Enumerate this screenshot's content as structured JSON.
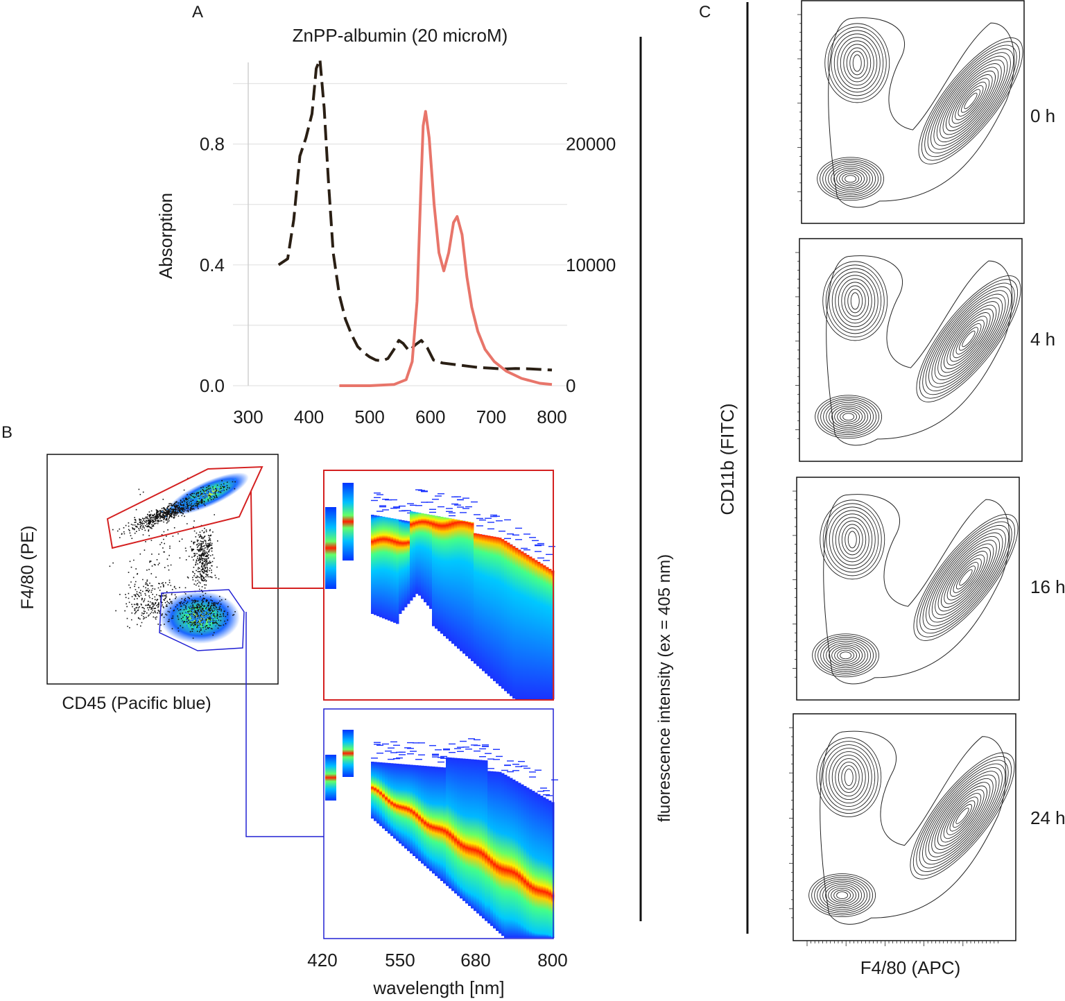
{
  "panel_labels": {
    "a": "A",
    "b": "B",
    "c": "C"
  },
  "panel_a": {
    "chart_data": {
      "type": "line",
      "title": "ZnPP-albumin (20 microM)",
      "xlabel": "",
      "ylabel": "Absorption",
      "xlim": [
        290,
        810
      ],
      "ylim": [
        0,
        1.07
      ],
      "y2lim": [
        0,
        26750
      ],
      "x_ticks": [
        "300",
        "400",
        "500",
        "600",
        "700",
        "800"
      ],
      "y_ticks": [
        "0.0",
        "0.4",
        "0.8"
      ],
      "y2_ticks": [
        "0",
        "10000",
        "20000"
      ],
      "series": [
        {
          "name": "absorption",
          "axis": "left",
          "style": "dashed",
          "color": "#2a1f14",
          "x": [
            350,
            365,
            375,
            385,
            395,
            405,
            412,
            418,
            425,
            432,
            440,
            450,
            460,
            470,
            480,
            490,
            500,
            510,
            520,
            530,
            540,
            548,
            555,
            565,
            575,
            585,
            595,
            605,
            620,
            640,
            660,
            680,
            700,
            720,
            740,
            760,
            780,
            800
          ],
          "y": [
            0.4,
            0.42,
            0.55,
            0.76,
            0.82,
            0.9,
            1.05,
            1.08,
            0.92,
            0.68,
            0.44,
            0.3,
            0.22,
            0.17,
            0.13,
            0.11,
            0.095,
            0.085,
            0.082,
            0.09,
            0.12,
            0.15,
            0.14,
            0.115,
            0.135,
            0.15,
            0.125,
            0.085,
            0.075,
            0.07,
            0.065,
            0.06,
            0.058,
            0.055,
            0.057,
            0.056,
            0.054,
            0.052
          ]
        },
        {
          "name": "fluorescence",
          "axis": "right",
          "style": "solid",
          "color": "#e8756a",
          "x": [
            450,
            500,
            540,
            560,
            570,
            578,
            584,
            588,
            592,
            598,
            606,
            614,
            622,
            630,
            638,
            644,
            652,
            660,
            668,
            678,
            690,
            705,
            725,
            750,
            780,
            800
          ],
          "y": [
            0,
            0,
            100,
            500,
            2000,
            7000,
            16000,
            21500,
            22700,
            20500,
            15000,
            11000,
            9500,
            11000,
            13500,
            14000,
            12500,
            9000,
            6500,
            4500,
            3000,
            2000,
            1200,
            600,
            200,
            100
          ]
        }
      ]
    }
  },
  "panel_b": {
    "scatter": {
      "xlabel": "CD45 (Pacific blue)",
      "ylabel": "F4/80 (PE)"
    },
    "heatmaps": {
      "x_ticks": [
        "420",
        "550",
        "680",
        "800"
      ],
      "xlabel": "wavelength [nm]",
      "ylabel": "fluorescence intensity (ex = 405 nm)",
      "upper_color": "#d42020",
      "lower_color": "#2020d4"
    }
  },
  "panel_c": {
    "ylabel": "CD11b (FITC)",
    "xlabel": "F4/80 (APC)",
    "time_points": [
      "0 h",
      "4 h",
      "16 h",
      "24 h"
    ]
  }
}
